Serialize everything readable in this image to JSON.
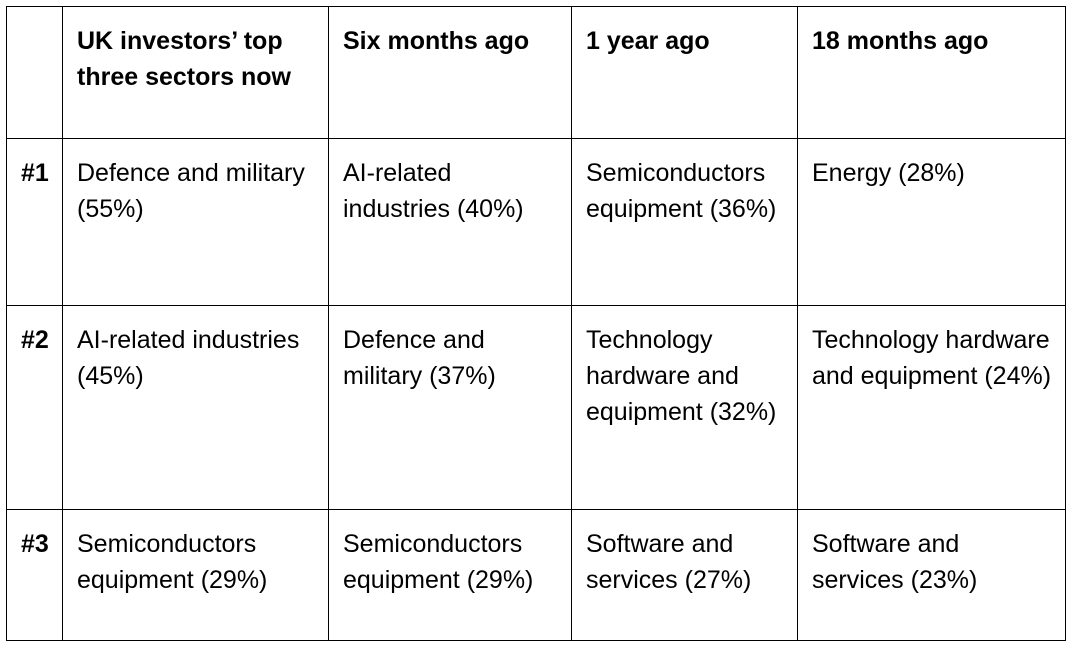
{
  "table": {
    "corner": "",
    "headers": [
      "UK investors’ top three sectors now",
      "Six months ago",
      "1 year ago",
      "18 months ago"
    ],
    "rows": [
      {
        "rank": "#1",
        "cells": [
          "Defence and military (55%)",
          "AI-related industries (40%)",
          "Semiconductors equipment (36%)",
          "Energy (28%)"
        ]
      },
      {
        "rank": "#2",
        "cells": [
          "AI-related industries (45%)",
          "Defence and military (37%)",
          "Technology hardware and equipment (32%)",
          "Technology hardware and equipment (24%)"
        ]
      },
      {
        "rank": "#3",
        "cells": [
          "Semiconductors equipment (29%)",
          "Semiconductors equipment (29%)",
          "Software and services (27%)",
          "Software and services (23%)"
        ]
      }
    ]
  }
}
